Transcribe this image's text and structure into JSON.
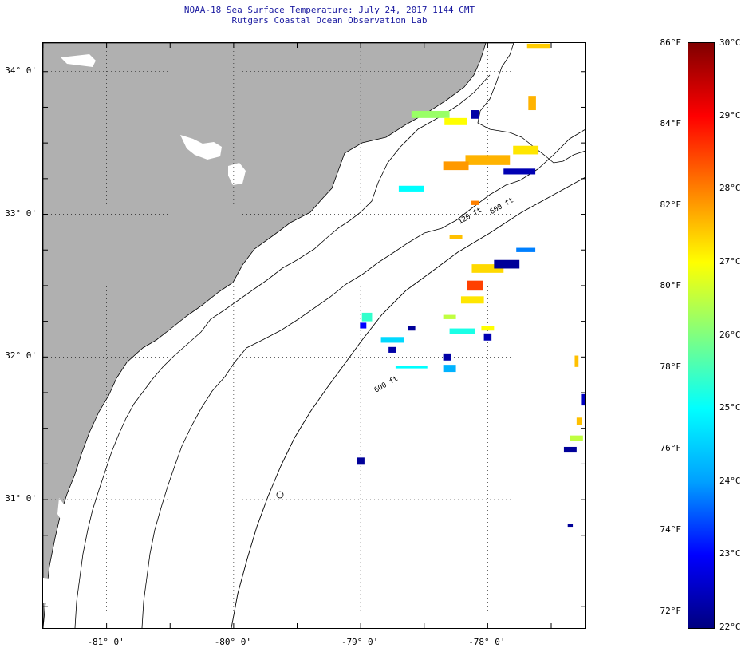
{
  "title": {
    "line1": "NOAA-18 Sea Surface Temperature:  July 24, 2017 1144 GMT",
    "line2": "Rutgers Coastal Ocean Observation Lab"
  },
  "map": {
    "lat_range": [
      30.1,
      34.2
    ],
    "lon_range": [
      -81.5,
      -77.23
    ],
    "lat_labels": [
      {
        "lat": 34,
        "text": "34° 0'"
      },
      {
        "lat": 33,
        "text": "33° 0'"
      },
      {
        "lat": 32,
        "text": "32° 0'"
      },
      {
        "lat": 31,
        "text": "31° 0'"
      }
    ],
    "lon_labels": [
      {
        "lon": -81,
        "text": "-81° 0'"
      },
      {
        "lon": -80,
        "text": "-80° 0'"
      },
      {
        "lon": -79,
        "text": "-79° 0'"
      },
      {
        "lon": -78,
        "text": "-78° 0'"
      }
    ],
    "contour_labels": [
      {
        "text": "120 ft",
        "lon": -78.22,
        "lat": 32.93
      },
      {
        "text": "600 ft",
        "lon": -77.97,
        "lat": 33.0
      },
      {
        "text": "600 ft",
        "lon": -78.88,
        "lat": 31.75
      }
    ],
    "land_color": "#b0b0b0",
    "grid_style": "dotted"
  },
  "sst_patches": [
    {
      "lon": -78.45,
      "lat": 33.7,
      "t": 26.2,
      "w": 0.3,
      "h": 0.05
    },
    {
      "lon": -78.25,
      "lat": 33.65,
      "t": 27.0,
      "w": 0.18,
      "h": 0.05
    },
    {
      "lon": -78.1,
      "lat": 33.7,
      "t": 22.3,
      "w": 0.06,
      "h": 0.06
    },
    {
      "lon": -77.7,
      "lat": 33.45,
      "t": 27.2,
      "w": 0.2,
      "h": 0.06
    },
    {
      "lon": -78.0,
      "lat": 33.38,
      "t": 27.6,
      "w": 0.35,
      "h": 0.07
    },
    {
      "lon": -78.25,
      "lat": 33.34,
      "t": 27.8,
      "w": 0.2,
      "h": 0.06
    },
    {
      "lon": -77.75,
      "lat": 33.3,
      "t": 22.4,
      "w": 0.25,
      "h": 0.04
    },
    {
      "lon": -78.6,
      "lat": 33.18,
      "t": 25.0,
      "w": 0.2,
      "h": 0.04
    },
    {
      "lon": -78.1,
      "lat": 33.08,
      "t": 28.0,
      "w": 0.06,
      "h": 0.03
    },
    {
      "lon": -78.25,
      "lat": 32.84,
      "t": 27.5,
      "w": 0.1,
      "h": 0.03
    },
    {
      "lon": -77.65,
      "lat": 33.78,
      "t": 27.6,
      "w": 0.06,
      "h": 0.1
    },
    {
      "lon": -77.6,
      "lat": 34.18,
      "t": 27.4,
      "w": 0.18,
      "h": 0.03
    },
    {
      "lon": -78.0,
      "lat": 32.62,
      "t": 27.3,
      "w": 0.25,
      "h": 0.06
    },
    {
      "lon": -77.85,
      "lat": 32.65,
      "t": 22.2,
      "w": 0.2,
      "h": 0.06
    },
    {
      "lon": -77.7,
      "lat": 32.75,
      "t": 23.8,
      "w": 0.15,
      "h": 0.03
    },
    {
      "lon": -78.1,
      "lat": 32.5,
      "t": 28.5,
      "w": 0.12,
      "h": 0.07
    },
    {
      "lon": -78.12,
      "lat": 32.4,
      "t": 27.2,
      "w": 0.18,
      "h": 0.05
    },
    {
      "lon": -78.3,
      "lat": 32.28,
      "t": 26.5,
      "w": 0.1,
      "h": 0.03
    },
    {
      "lon": -78.0,
      "lat": 32.2,
      "t": 27.0,
      "w": 0.1,
      "h": 0.03
    },
    {
      "lon": -78.2,
      "lat": 32.18,
      "t": 25.2,
      "w": 0.2,
      "h": 0.04
    },
    {
      "lon": -78.0,
      "lat": 32.14,
      "t": 22.4,
      "w": 0.06,
      "h": 0.05
    },
    {
      "lon": -78.95,
      "lat": 32.28,
      "t": 25.4,
      "w": 0.08,
      "h": 0.06
    },
    {
      "lon": -78.98,
      "lat": 32.22,
      "t": 23.0,
      "w": 0.05,
      "h": 0.04
    },
    {
      "lon": -78.75,
      "lat": 32.12,
      "t": 24.6,
      "w": 0.18,
      "h": 0.04
    },
    {
      "lon": -78.75,
      "lat": 32.05,
      "t": 22.3,
      "w": 0.06,
      "h": 0.04
    },
    {
      "lon": -78.6,
      "lat": 32.2,
      "t": 22.2,
      "w": 0.06,
      "h": 0.03
    },
    {
      "lon": -78.3,
      "lat": 31.92,
      "t": 24.2,
      "w": 0.1,
      "h": 0.05
    },
    {
      "lon": -78.32,
      "lat": 32.0,
      "t": 22.3,
      "w": 0.06,
      "h": 0.05
    },
    {
      "lon": -78.6,
      "lat": 31.93,
      "t": 25.0,
      "w": 0.25,
      "h": 0.02
    },
    {
      "lon": -79.0,
      "lat": 31.27,
      "t": 22.2,
      "w": 0.06,
      "h": 0.05
    },
    {
      "lon": -77.3,
      "lat": 31.97,
      "t": 27.5,
      "w": 0.03,
      "h": 0.08
    },
    {
      "lon": -77.25,
      "lat": 31.7,
      "t": 22.5,
      "w": 0.03,
      "h": 0.08
    },
    {
      "lon": -77.35,
      "lat": 31.35,
      "t": 22.2,
      "w": 0.1,
      "h": 0.04
    },
    {
      "lon": -77.3,
      "lat": 31.43,
      "t": 26.5,
      "w": 0.1,
      "h": 0.04
    },
    {
      "lon": -77.28,
      "lat": 31.55,
      "t": 27.5,
      "w": 0.04,
      "h": 0.05
    },
    {
      "lon": -77.35,
      "lat": 30.82,
      "t": 22.2,
      "w": 0.04,
      "h": 0.02
    }
  ],
  "colorbar": {
    "c_min": 22,
    "c_max": 30,
    "fahrenheit_labels": [
      {
        "value": 86,
        "text": "86°F"
      },
      {
        "value": 84,
        "text": "84°F"
      },
      {
        "value": 82,
        "text": "82°F"
      },
      {
        "value": 80,
        "text": "80°F"
      },
      {
        "value": 78,
        "text": "78°F"
      },
      {
        "value": 76,
        "text": "76°F"
      },
      {
        "value": 74,
        "text": "74°F"
      },
      {
        "value": 72,
        "text": "72°F"
      }
    ],
    "celsius_labels": [
      {
        "value": 30,
        "text": "30°C"
      },
      {
        "value": 29,
        "text": "29°C"
      },
      {
        "value": 28,
        "text": "28°C"
      },
      {
        "value": 27,
        "text": "27°C"
      },
      {
        "value": 26,
        "text": "26°C"
      },
      {
        "value": 25,
        "text": "25°C"
      },
      {
        "value": 24,
        "text": "24°C"
      },
      {
        "value": 23,
        "text": "23°C"
      },
      {
        "value": 22,
        "text": "22°C"
      }
    ],
    "colors": [
      "#000080",
      "#0000ff",
      "#00a0ff",
      "#00ffff",
      "#80ff80",
      "#ffff00",
      "#ff8000",
      "#ff0000",
      "#800000"
    ]
  }
}
